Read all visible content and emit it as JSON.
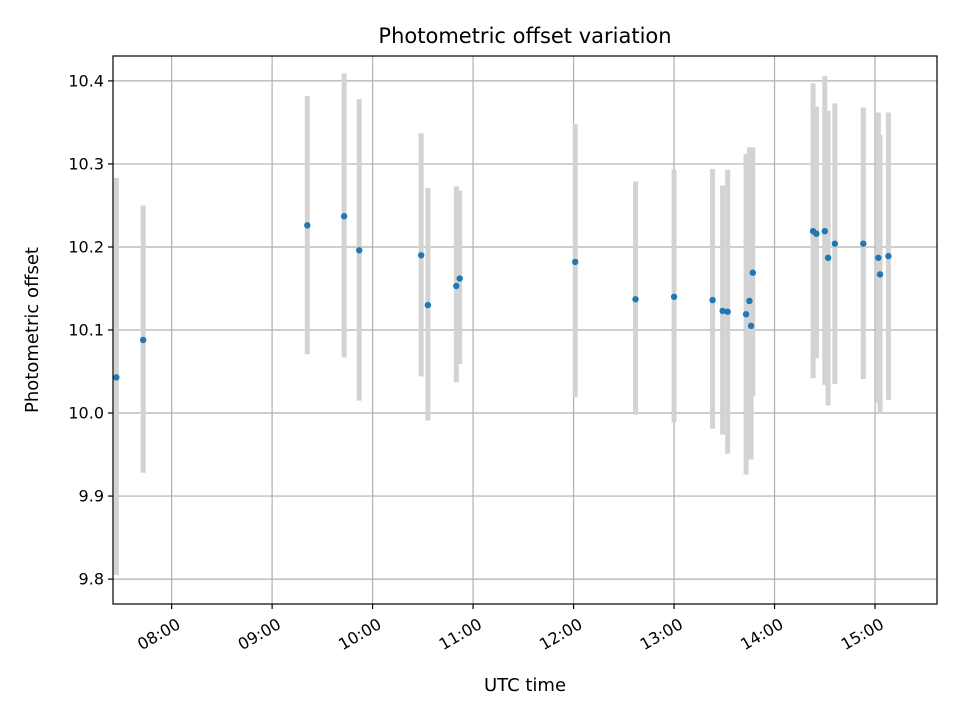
{
  "chart_data": {
    "type": "scatter",
    "title": "Photometric offset variation",
    "xlabel": "UTC time",
    "ylabel": "Photometric offset",
    "xlim": [
      "07:25",
      "15:37"
    ],
    "ylim": [
      9.77,
      10.43
    ],
    "xticks": [
      "08:00",
      "09:00",
      "10:00",
      "11:00",
      "12:00",
      "13:00",
      "14:00",
      "15:00"
    ],
    "yticks": [
      "9.8",
      "9.9",
      "10.0",
      "10.1",
      "10.2",
      "10.3",
      "10.4"
    ],
    "grid": true,
    "marker_color": "#1f77b4",
    "errorbar_color": "#d3d3d3",
    "points": [
      {
        "t": "07:27",
        "y": 10.043,
        "lo": 9.805,
        "hi": 10.283
      },
      {
        "t": "07:43",
        "y": 10.088,
        "lo": 9.928,
        "hi": 10.25
      },
      {
        "t": "09:21",
        "y": 10.226,
        "lo": 10.071,
        "hi": 10.382
      },
      {
        "t": "09:43",
        "y": 10.237,
        "lo": 10.067,
        "hi": 10.409
      },
      {
        "t": "09:52",
        "y": 10.196,
        "lo": 10.015,
        "hi": 10.378
      },
      {
        "t": "10:29",
        "y": 10.19,
        "lo": 10.044,
        "hi": 10.337
      },
      {
        "t": "10:33",
        "y": 10.13,
        "lo": 9.991,
        "hi": 10.271
      },
      {
        "t": "10:50",
        "y": 10.153,
        "lo": 10.037,
        "hi": 10.273
      },
      {
        "t": "10:52",
        "y": 10.162,
        "lo": 10.059,
        "hi": 10.268
      },
      {
        "t": "12:01",
        "y": 10.182,
        "lo": 10.019,
        "hi": 10.348
      },
      {
        "t": "12:37",
        "y": 10.137,
        "lo": 9.998,
        "hi": 10.279
      },
      {
        "t": "13:00",
        "y": 10.14,
        "lo": 9.989,
        "hi": 10.293
      },
      {
        "t": "13:23",
        "y": 10.136,
        "lo": 9.981,
        "hi": 10.294
      },
      {
        "t": "13:29",
        "y": 10.123,
        "lo": 9.974,
        "hi": 10.274
      },
      {
        "t": "13:32",
        "y": 10.122,
        "lo": 9.951,
        "hi": 10.293
      },
      {
        "t": "13:43",
        "y": 10.119,
        "lo": 9.926,
        "hi": 10.312
      },
      {
        "t": "13:45",
        "y": 10.135,
        "lo": 9.951,
        "hi": 10.32
      },
      {
        "t": "13:46",
        "y": 10.105,
        "lo": 9.944,
        "hi": 10.32
      },
      {
        "t": "13:47",
        "y": 10.169,
        "lo": 10.02,
        "hi": 10.32
      },
      {
        "t": "14:23",
        "y": 10.219,
        "lo": 10.042,
        "hi": 10.397
      },
      {
        "t": "14:25",
        "y": 10.216,
        "lo": 10.066,
        "hi": 10.369
      },
      {
        "t": "14:30",
        "y": 10.219,
        "lo": 10.034,
        "hi": 10.406
      },
      {
        "t": "14:32",
        "y": 10.187,
        "lo": 10.009,
        "hi": 10.364
      },
      {
        "t": "14:36",
        "y": 10.204,
        "lo": 10.035,
        "hi": 10.373
      },
      {
        "t": "14:53",
        "y": 10.204,
        "lo": 10.041,
        "hi": 10.368
      },
      {
        "t": "15:02",
        "y": 10.187,
        "lo": 10.012,
        "hi": 10.362
      },
      {
        "t": "15:03",
        "y": 10.167,
        "lo": 10.0,
        "hi": 10.335
      },
      {
        "t": "15:08",
        "y": 10.189,
        "lo": 10.016,
        "hi": 10.362
      }
    ]
  }
}
